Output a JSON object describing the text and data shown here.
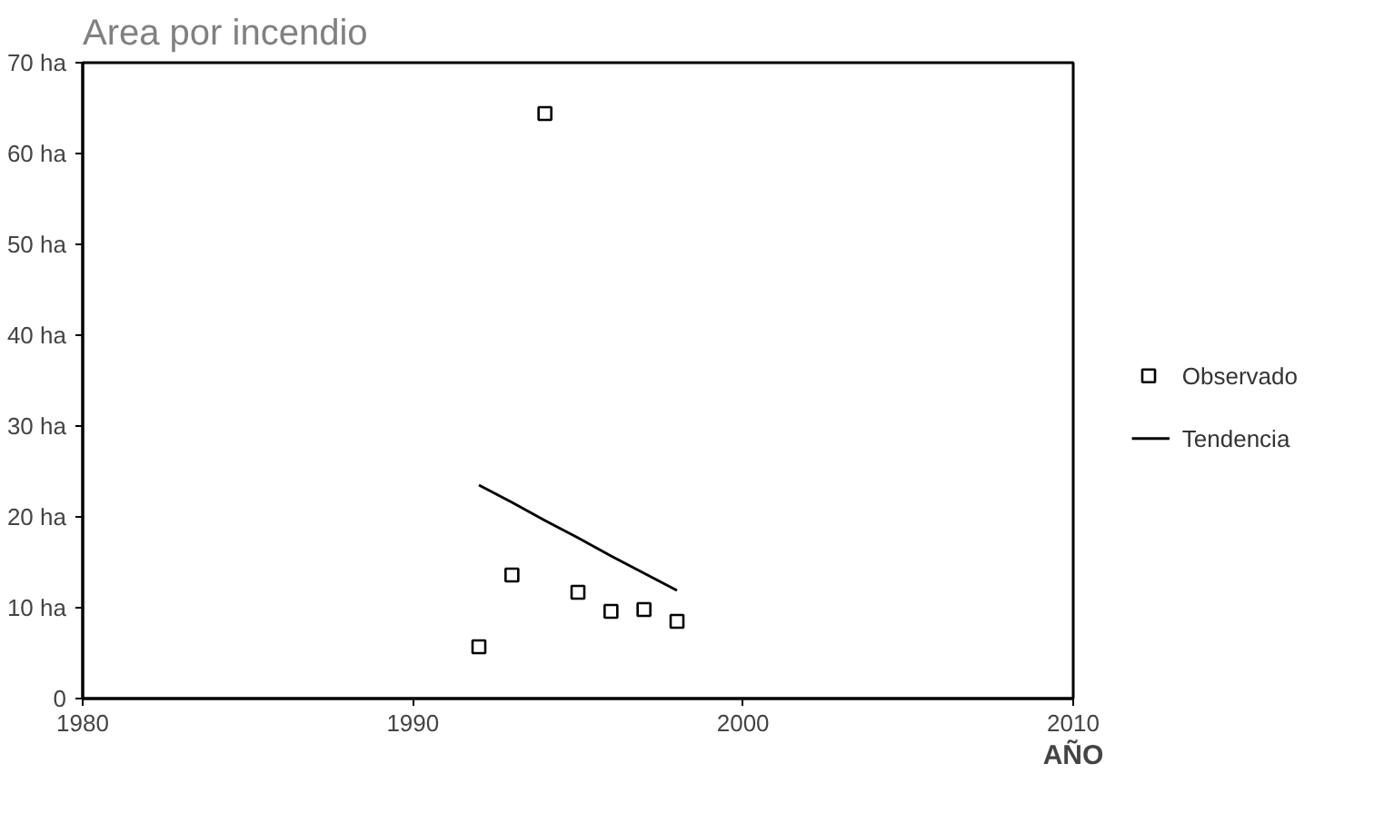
{
  "chart_data": {
    "type": "scatter",
    "title": "Area por incendio",
    "xlabel": "AÑO",
    "xlim": [
      1980,
      2010
    ],
    "xticks": [
      1980,
      1990,
      2000,
      2010
    ],
    "ylim": [
      0,
      70
    ],
    "yticks": [
      0,
      {
        "value": 10,
        "label": "10 ha"
      },
      {
        "value": 20,
        "label": "20 ha"
      },
      {
        "value": 30,
        "label": "30 ha"
      },
      {
        "value": 40,
        "label": "40 ha"
      },
      {
        "value": 50,
        "label": "50 ha"
      },
      {
        "value": 60,
        "label": "60 ha"
      },
      {
        "value": 70,
        "label": "70 ha"
      }
    ],
    "grid": false,
    "legend": "right",
    "series": [
      {
        "name": "Observado",
        "type": "scatter",
        "marker": "square",
        "color": "#000000",
        "x": [
          1992,
          1993,
          1994,
          1995,
          1996,
          1997,
          1998
        ],
        "values": [
          5.7,
          13.6,
          64.4,
          11.7,
          9.6,
          9.8,
          8.5
        ]
      },
      {
        "name": "Tendencia",
        "type": "line",
        "color": "#000000",
        "line_style": "solid",
        "x": [
          1992,
          1993,
          1994,
          1995,
          1996,
          1997,
          1998
        ],
        "values": [
          23.5,
          21.6,
          19.6,
          17.7,
          15.7,
          13.8,
          11.9
        ]
      }
    ]
  }
}
